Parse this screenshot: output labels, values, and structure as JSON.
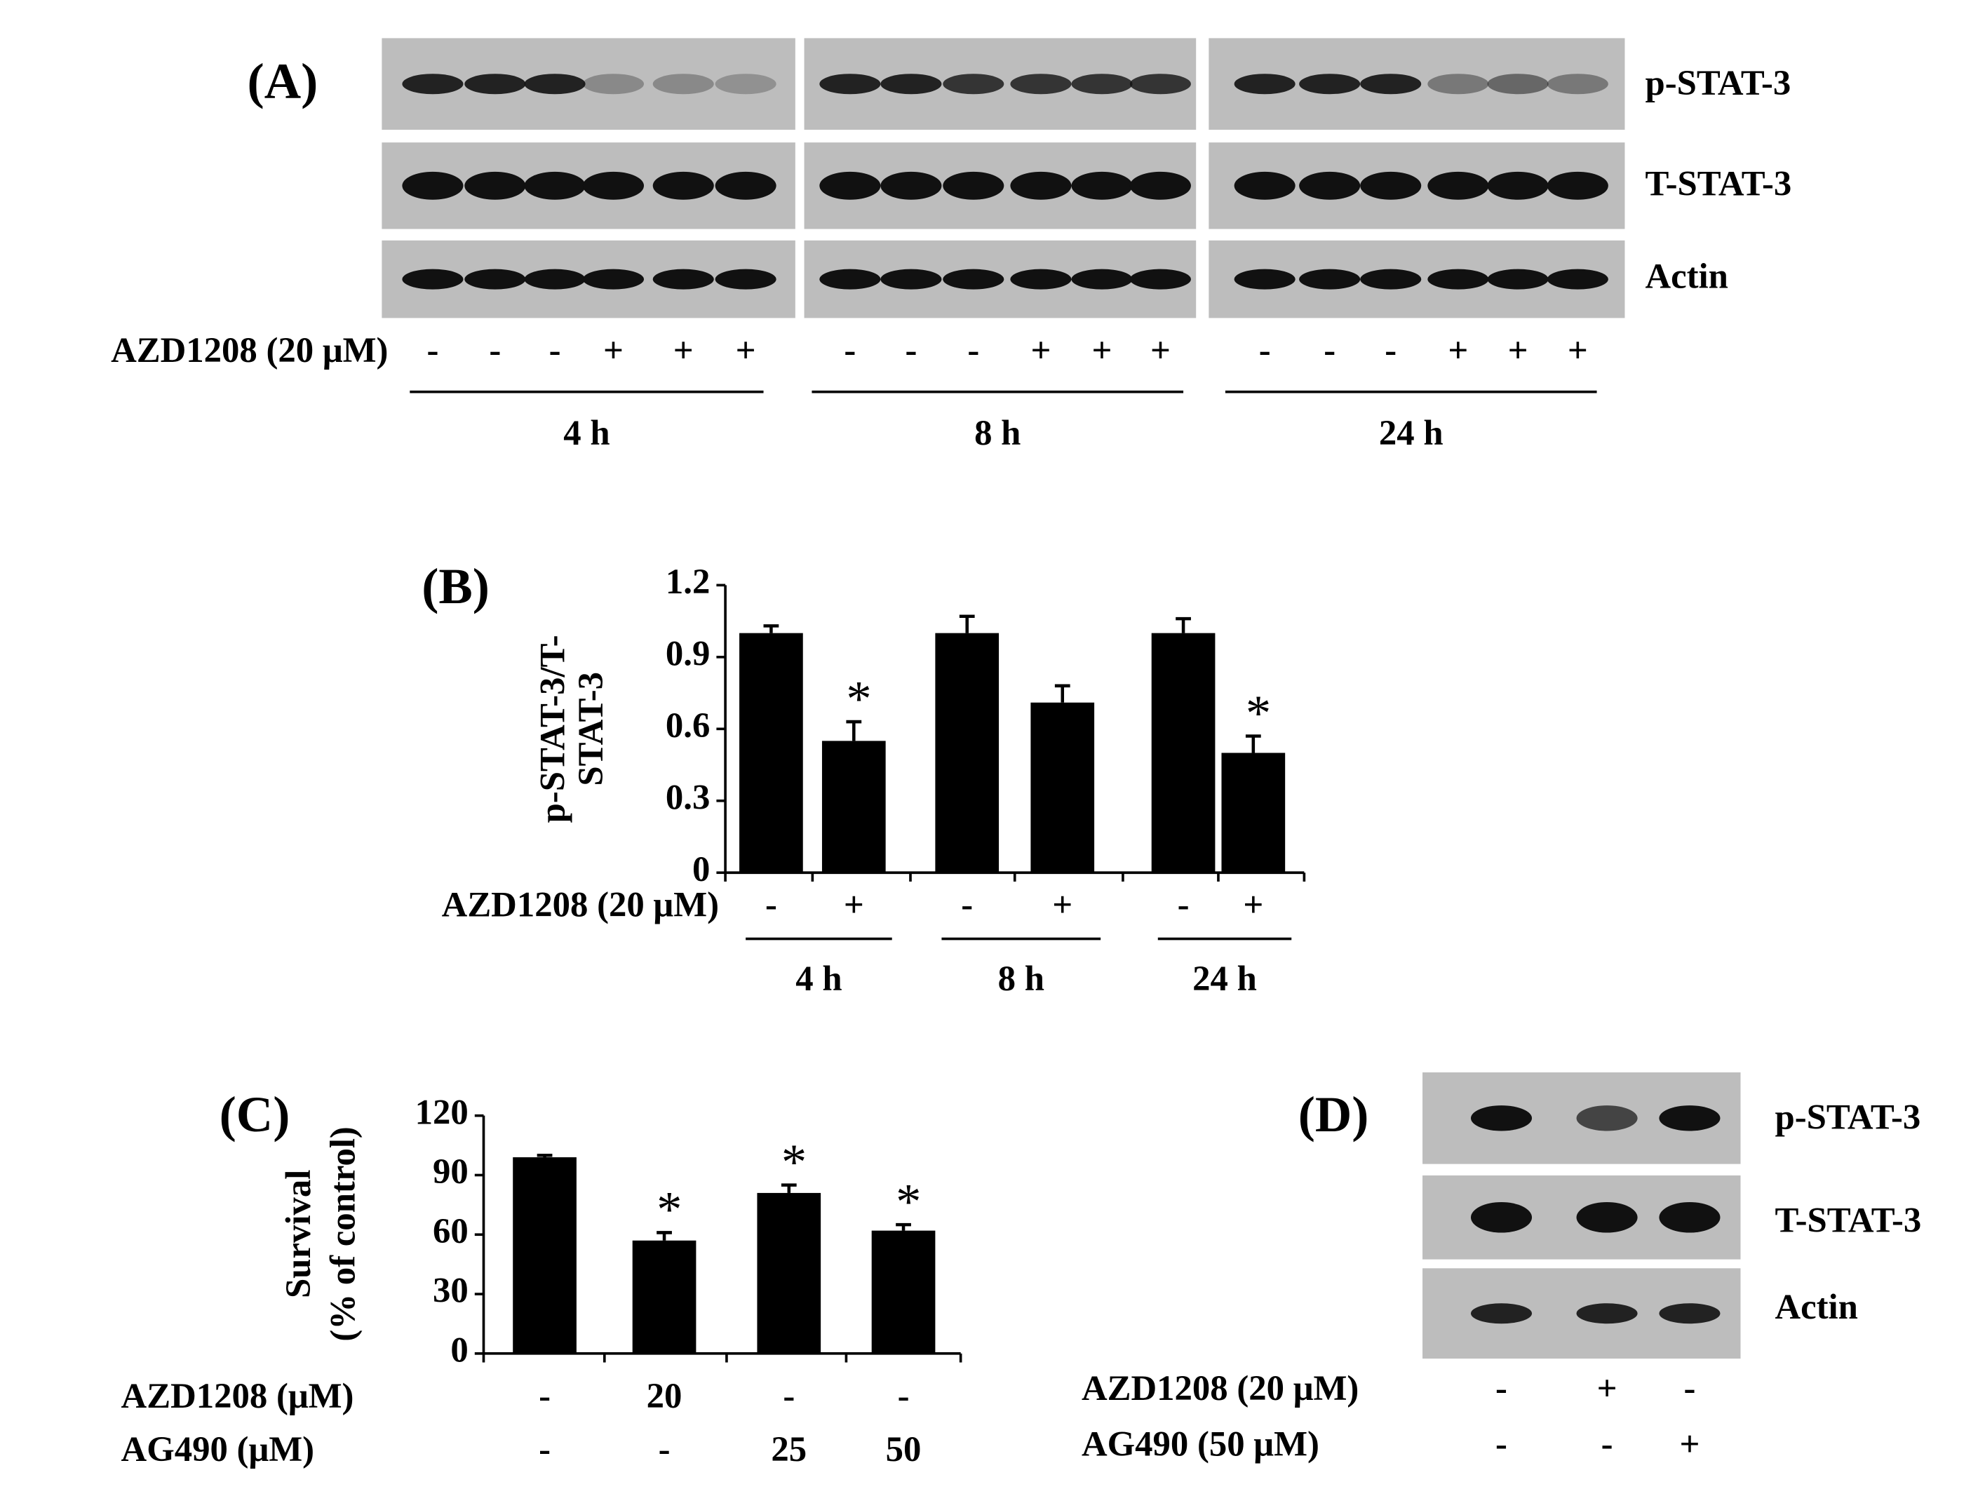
{
  "panel_a": {
    "label": "(A)",
    "rows": [
      "p-STAT-3",
      "T-STAT-3",
      "Actin"
    ],
    "treatment": "AZD1208 (20 μM)",
    "signs": [
      "-",
      "-",
      "-",
      "+",
      "+",
      "+",
      "-",
      "-",
      "-",
      "+",
      "+",
      "+",
      "-",
      "-",
      "-",
      "+",
      "+",
      "+"
    ],
    "groups": [
      "4 h",
      "8 h",
      "24 h"
    ]
  },
  "chart_data": [
    {
      "type": "bar",
      "label": "(B)",
      "ylabel": [
        "p-STAT-3/T-",
        "STAT-3"
      ],
      "values": [
        1.0,
        0.55,
        1.0,
        0.71,
        1.0,
        0.5
      ],
      "errors": [
        0.03,
        0.08,
        0.07,
        0.07,
        0.06,
        0.07
      ],
      "annotations": [
        null,
        "*",
        null,
        null,
        null,
        "*"
      ],
      "treatments": [
        {
          "name": "AZD1208 (20 μM)",
          "levels": [
            "-",
            "+",
            "-",
            "+",
            "-",
            "+"
          ]
        }
      ],
      "groups": [
        "4 h",
        "8 h",
        "24 h"
      ],
      "color": "#000000",
      "ylim": [
        0,
        1.2
      ],
      "yticks": [
        0,
        0.3,
        0.6,
        0.9,
        1.2
      ]
    },
    {
      "type": "bar",
      "label": "(C)",
      "ylabel": [
        "Survival",
        "(% of control)"
      ],
      "values": [
        99,
        57,
        81,
        62
      ],
      "errors": [
        1,
        4,
        4,
        3
      ],
      "annotations": [
        null,
        "*",
        "*",
        "*"
      ],
      "treatments": [
        {
          "name": "AZD1208 (μM)",
          "levels": [
            "-",
            "20",
            "-",
            "-"
          ]
        },
        {
          "name": "AG490 (μM)",
          "levels": [
            "-",
            "-",
            "25",
            "50"
          ]
        }
      ],
      "color": "#000000",
      "ylim": [
        0,
        120
      ],
      "yticks": [
        0,
        30,
        60,
        90,
        120
      ]
    }
  ],
  "panel_d": {
    "label": "(D)",
    "rows": [
      "p-STAT-3",
      "T-STAT-3",
      "Actin"
    ],
    "treatments": [
      {
        "name": "AZD1208 (20 μM)",
        "levels": [
          "-",
          "+",
          "-"
        ]
      },
      {
        "name": "AG490 (50 μM)",
        "levels": [
          "-",
          "-",
          "+"
        ]
      }
    ]
  }
}
